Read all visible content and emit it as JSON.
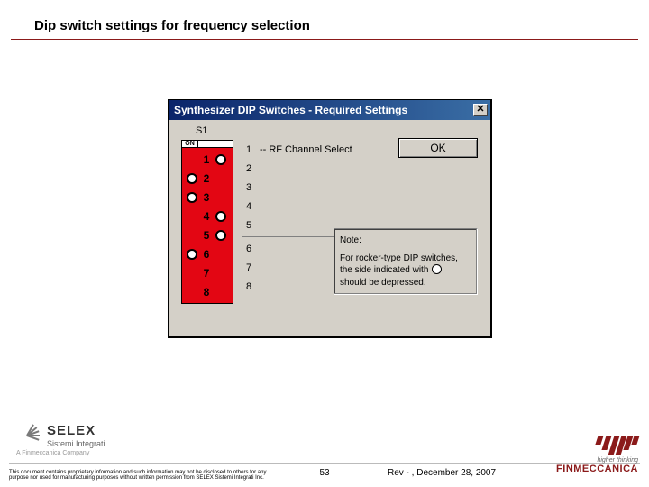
{
  "page": {
    "title": "Dip switch settings for frequency selection",
    "background": "#ffffff",
    "accent_rule_color": "#8b1a1a"
  },
  "dialog": {
    "title": "Synthesizer DIP Switches - Required Settings",
    "titlebar_gradient": [
      "#0a246a",
      "#3a6ea5"
    ],
    "body_bg": "#d4d0c8",
    "close_glyph": "✕",
    "ok_label": "OK",
    "s1_label": "S1",
    "dip": {
      "header_on": "ON",
      "header_off": "",
      "bg_color": "#e30613",
      "rows": [
        {
          "num": "1",
          "on": false,
          "off": true
        },
        {
          "num": "2",
          "on": true,
          "off": false
        },
        {
          "num": "3",
          "on": true,
          "off": false
        },
        {
          "num": "4",
          "on": false,
          "off": true
        },
        {
          "num": "5",
          "on": false,
          "off": true
        },
        {
          "num": "6",
          "on": true,
          "off": false
        },
        {
          "num": "7",
          "on": false,
          "off": false
        },
        {
          "num": "8",
          "on": false,
          "off": false
        }
      ]
    },
    "labels": {
      "channel_text": "RF Channel Select",
      "rows": [
        "1",
        "2",
        "3",
        "4",
        "5",
        "6",
        "7",
        "8"
      ],
      "dash": "--",
      "separator_after": 5
    },
    "note": {
      "title": "Note:",
      "line1": "For rocker-type DIP switches, the side indicated with",
      "line2": "should be depressed."
    }
  },
  "footer": {
    "selex": {
      "brand": "SELEX",
      "sub": "Sistemi Integrati",
      "tag": "A Finmeccanica Company"
    },
    "fin": {
      "tag1": "higher thinking",
      "tag2": "FINMECCANICA"
    },
    "disclaimer": "This document contains proprietary information and such information may not be disclosed to others for any purpose nor used for manufacturing purposes without written permission from SELEX Sistemi Integrati Inc.",
    "page_num": "53",
    "rev": "Rev - , December 28, 2007"
  }
}
